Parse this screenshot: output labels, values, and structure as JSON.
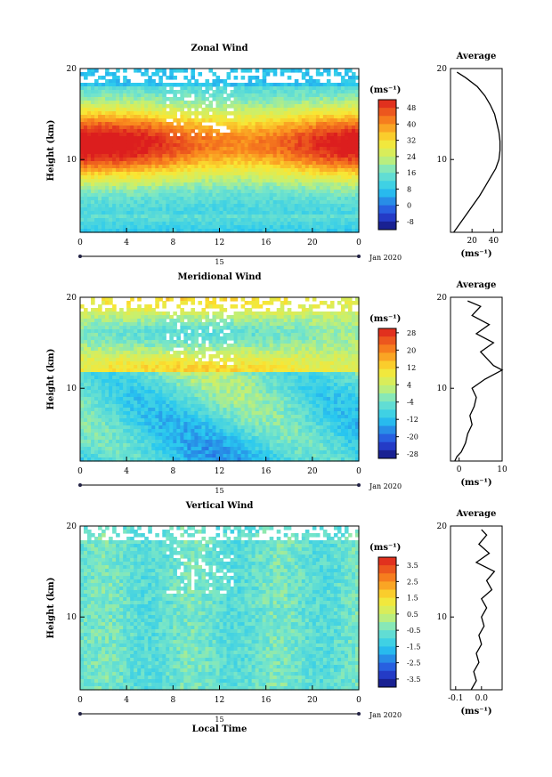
{
  "chart_data": [
    {
      "type": "heatmap",
      "title": "Zonal Wind",
      "ylabel": "Height (km)",
      "xlabel": "",
      "x_ticks": [
        "0",
        "4",
        "8",
        "12",
        "16",
        "20",
        "0"
      ],
      "day_label": "15",
      "date_label": "Jan 2020",
      "y_ticks": [
        "20",
        "10"
      ],
      "ylim": [
        2,
        20
      ],
      "xlim": [
        0,
        24
      ],
      "colorbar_unit": "(ms⁻¹)",
      "colorbar_ticks": [
        "48",
        "40",
        "32",
        "24",
        "16",
        "8",
        "0",
        "-8"
      ],
      "colorbar_range": [
        -12,
        52
      ],
      "profile": {
        "title": "Average",
        "x_ticks": [
          "20",
          "40"
        ],
        "xlim": [
          0,
          48
        ],
        "y_ticks": [
          "20",
          "10"
        ],
        "xlabel": "(ms⁻¹)",
        "heights": [
          2,
          3,
          4,
          5,
          6,
          7,
          8,
          9,
          10,
          11,
          12,
          13,
          14,
          15,
          16,
          17,
          18,
          19,
          19.6
        ],
        "values": [
          3,
          9,
          15,
          21,
          27,
          32,
          37,
          42,
          45,
          46,
          46,
          45,
          43,
          41,
          37,
          32,
          25,
          14,
          6
        ]
      }
    },
    {
      "type": "heatmap",
      "title": "Meridional Wind",
      "ylabel": "Height (km)",
      "xlabel": "",
      "x_ticks": [
        "0",
        "4",
        "8",
        "12",
        "16",
        "20",
        "0"
      ],
      "day_label": "15",
      "date_label": "Jan 2020",
      "y_ticks": [
        "20",
        "10"
      ],
      "ylim": [
        2,
        20
      ],
      "xlim": [
        0,
        24
      ],
      "colorbar_unit": "(ms⁻¹)",
      "colorbar_ticks": [
        "28",
        "20",
        "12",
        "4",
        "-4",
        "-12",
        "-20",
        "-28"
      ],
      "colorbar_range": [
        -30,
        30
      ],
      "profile": {
        "title": "Average",
        "x_ticks": [
          "0",
          "10"
        ],
        "xlim": [
          -2,
          10
        ],
        "y_ticks": [
          "20",
          "10"
        ],
        "xlabel": "(ms⁻¹)",
        "heights": [
          2,
          2.5,
          3,
          4,
          5,
          6,
          7,
          8,
          9,
          10,
          11,
          11.5,
          12,
          12.5,
          13,
          14,
          15,
          16,
          17,
          18,
          19,
          19.6
        ],
        "values": [
          -1,
          -0.5,
          0.5,
          1.5,
          2,
          3,
          2.5,
          3.5,
          4,
          3,
          6,
          8,
          10,
          8,
          7,
          5,
          8,
          4,
          7,
          3,
          5,
          2
        ]
      }
    },
    {
      "type": "heatmap",
      "title": "Vertical Wind",
      "ylabel": "Height (km)",
      "xlabel": "Local Time",
      "x_ticks": [
        "0",
        "4",
        "8",
        "12",
        "16",
        "20",
        "0"
      ],
      "day_label": "15",
      "date_label": "Jan 2020",
      "y_ticks": [
        "20",
        "10"
      ],
      "ylim": [
        2,
        20
      ],
      "xlim": [
        0,
        24
      ],
      "colorbar_unit": "(ms⁻¹)",
      "colorbar_ticks": [
        "3.5",
        "2.5",
        "1.5",
        "0.5",
        "-0.5",
        "-1.5",
        "-2.5",
        "-3.5"
      ],
      "colorbar_range": [
        -4,
        4
      ],
      "profile": {
        "title": "Average",
        "x_ticks": [
          "-0.1",
          "0.0"
        ],
        "xlim": [
          -0.12,
          0.08
        ],
        "y_ticks": [
          "20",
          "10"
        ],
        "xlabel": "(ms⁻¹)",
        "heights": [
          2,
          3,
          4,
          5,
          6,
          7,
          8,
          9,
          10,
          11,
          12,
          13,
          14,
          15,
          16,
          17,
          18,
          19,
          19.6
        ],
        "values": [
          -0.04,
          -0.02,
          -0.03,
          -0.01,
          -0.02,
          0.0,
          -0.01,
          0.01,
          0.0,
          0.02,
          0.0,
          0.04,
          0.02,
          0.05,
          -0.02,
          0.03,
          -0.01,
          0.02,
          0.0
        ]
      }
    }
  ]
}
